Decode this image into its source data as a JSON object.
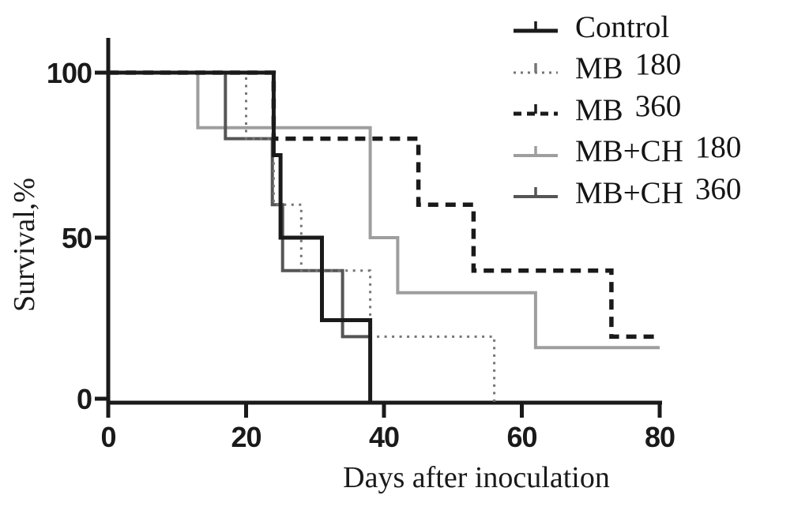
{
  "figure": {
    "background": "#ffffff",
    "axis_color": "#1a1a1a"
  },
  "chart_data": {
    "type": "line",
    "subtype": "kaplan-meier-step-survival",
    "title": "",
    "xlabel": "Days after inoculation",
    "ylabel": "Survival,%",
    "xlim": [
      0,
      80
    ],
    "ylim": [
      0,
      100
    ],
    "xticks": [
      0,
      20,
      40,
      60,
      80
    ],
    "yticks": [
      100,
      50,
      0
    ],
    "grid": false,
    "legend_position": "top-right",
    "series": [
      {
        "name": "Control",
        "dose": "",
        "color": "#1a1a1a",
        "style": "solid",
        "width": 5,
        "points": [
          [
            0,
            100
          ],
          [
            24,
            100
          ],
          [
            24,
            75
          ],
          [
            25,
            75
          ],
          [
            25,
            50
          ],
          [
            31,
            50
          ],
          [
            31,
            25
          ],
          [
            38,
            25
          ],
          [
            38,
            0
          ]
        ]
      },
      {
        "name": "MB",
        "dose": "180",
        "color": "#757575",
        "style": "dotted",
        "width": 3,
        "points": [
          [
            0,
            100
          ],
          [
            20,
            100
          ],
          [
            20,
            80
          ],
          [
            24,
            80
          ],
          [
            24,
            60
          ],
          [
            28,
            60
          ],
          [
            28,
            40
          ],
          [
            38,
            40
          ],
          [
            38,
            20
          ],
          [
            56,
            20
          ],
          [
            56,
            0
          ]
        ]
      },
      {
        "name": "MB",
        "dose": "360",
        "color": "#1a1a1a",
        "style": "dashed",
        "width": 5.5,
        "points": [
          [
            0,
            100
          ],
          [
            24,
            100
          ],
          [
            24,
            80
          ],
          [
            45,
            80
          ],
          [
            45,
            60
          ],
          [
            53,
            60
          ],
          [
            53,
            40
          ],
          [
            73,
            40
          ],
          [
            73,
            20
          ],
          [
            80,
            20
          ]
        ]
      },
      {
        "name": "MB+CH",
        "dose": "180",
        "color": "#9e9e9e",
        "style": "solid",
        "width": 4,
        "points": [
          [
            0,
            100
          ],
          [
            13,
            100
          ],
          [
            13,
            83.3
          ],
          [
            38,
            83.3
          ],
          [
            38,
            50
          ],
          [
            42,
            50
          ],
          [
            42,
            33.3
          ],
          [
            62,
            33.3
          ],
          [
            62,
            16.7
          ],
          [
            80,
            16.7
          ]
        ]
      },
      {
        "name": "MB+CH",
        "dose": "360",
        "color": "#555555",
        "style": "solid",
        "width": 4,
        "points": [
          [
            0,
            100
          ],
          [
            17,
            100
          ],
          [
            17,
            80
          ],
          [
            23.8,
            80
          ],
          [
            23.8,
            60
          ],
          [
            25.3,
            60
          ],
          [
            25.3,
            40
          ],
          [
            34,
            40
          ],
          [
            34,
            20
          ],
          [
            38,
            20
          ],
          [
            38,
            0
          ]
        ]
      }
    ]
  }
}
